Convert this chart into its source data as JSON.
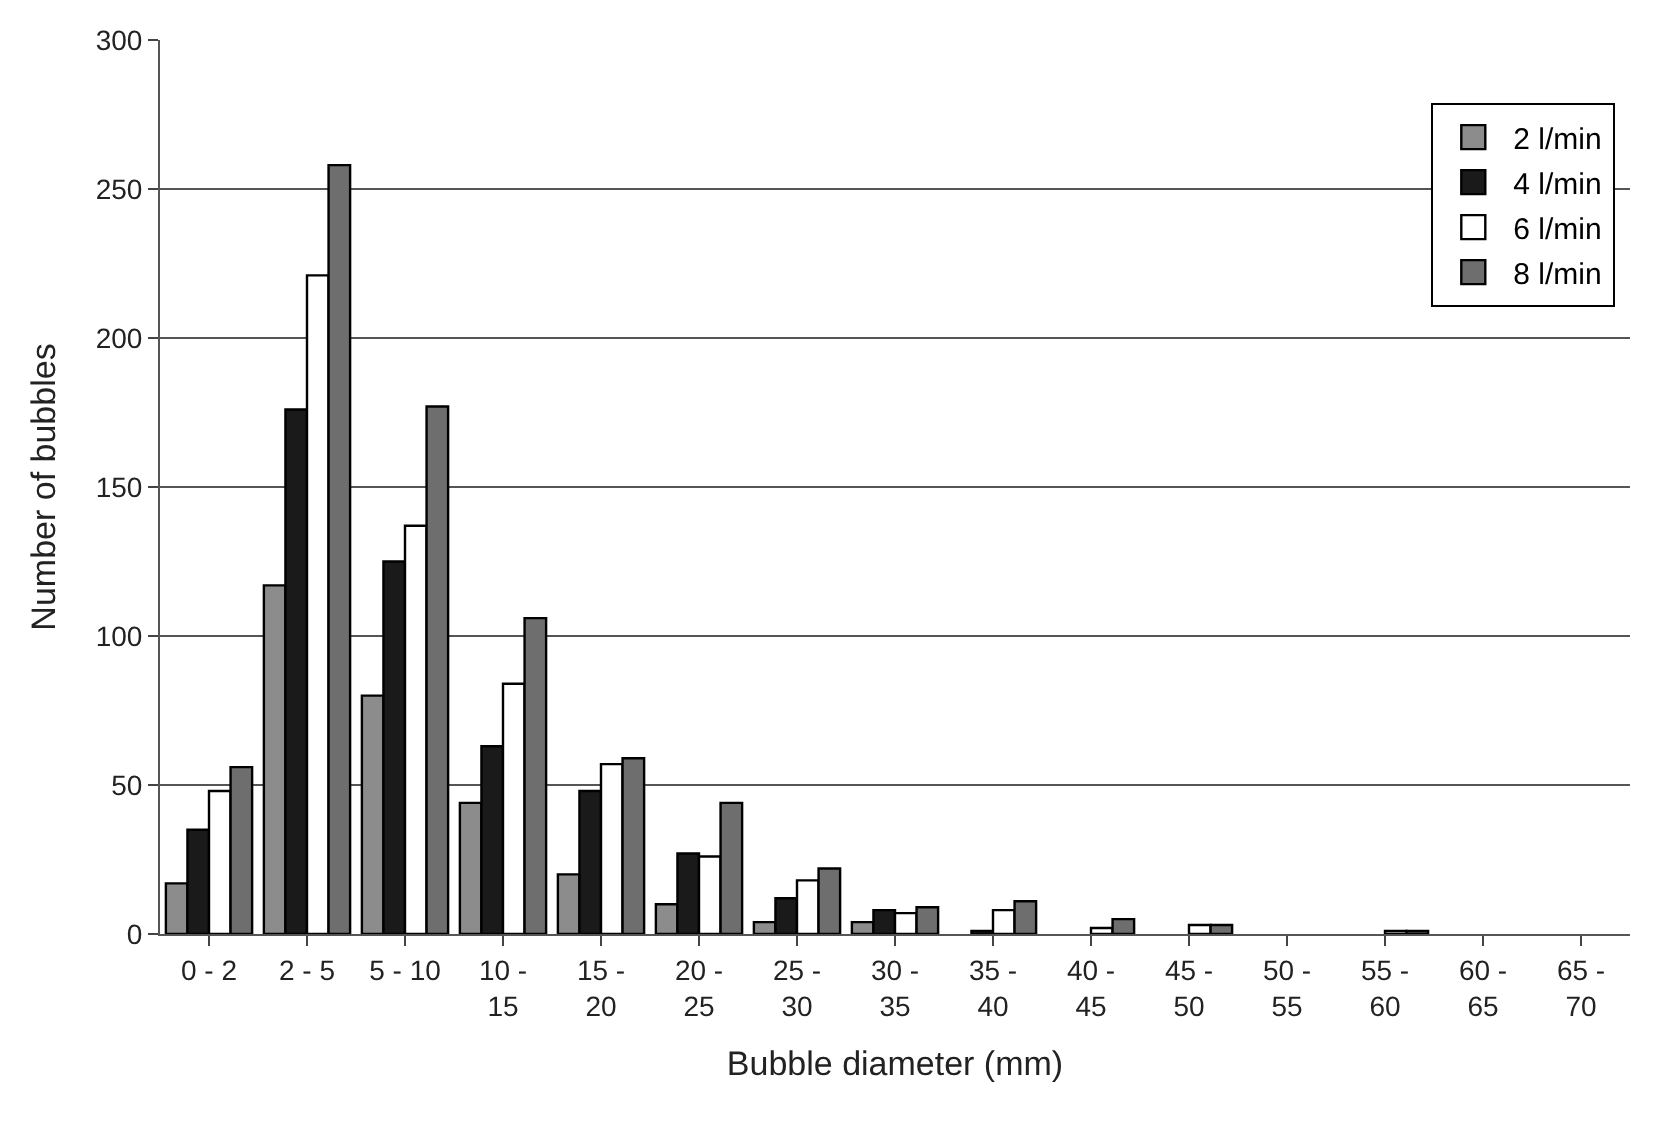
{
  "chart_data": {
    "type": "bar",
    "xlabel": "Bubble diameter (mm)",
    "ylabel": "Number of bubbles",
    "categories": [
      "0 - 2",
      "2 - 5",
      "5 - 10",
      "10 -\n15",
      "15 -\n20",
      "20 -\n25",
      "25 -\n30",
      "30 -\n35",
      "35 -\n40",
      "40 -\n45",
      "45 -\n50",
      "50 -\n55",
      "55 -\n60",
      "60 -\n65",
      "65 -\n70"
    ],
    "series": [
      {
        "name": "2 l/min",
        "color": "#8c8c8c",
        "values": [
          17,
          117,
          80,
          44,
          20,
          10,
          4,
          4,
          0,
          0,
          0,
          0,
          0,
          0,
          0
        ]
      },
      {
        "name": "4 l/min",
        "color": "#1a1a1a",
        "values": [
          35,
          176,
          125,
          63,
          48,
          27,
          12,
          8,
          1,
          0,
          0,
          0,
          0,
          0,
          0
        ]
      },
      {
        "name": "6 l/min",
        "color": "#ffffff",
        "values": [
          48,
          221,
          137,
          84,
          57,
          26,
          18,
          7,
          8,
          2,
          3,
          0,
          1,
          0,
          0
        ]
      },
      {
        "name": "8 l/min",
        "color": "#6e6e6e",
        "values": [
          56,
          258,
          177,
          106,
          59,
          44,
          22,
          9,
          11,
          5,
          3,
          0,
          1,
          0,
          0
        ]
      }
    ],
    "ylim": [
      0,
      300
    ],
    "yticks": [
      0,
      50,
      100,
      150,
      200,
      250,
      300
    ],
    "grid": "y",
    "legend": "top right"
  }
}
